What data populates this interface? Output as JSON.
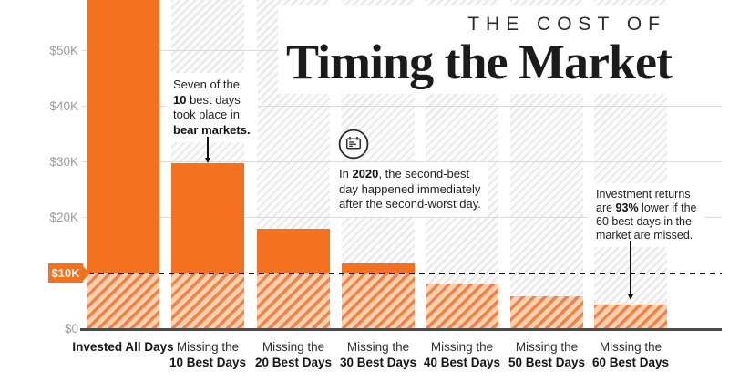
{
  "header": {
    "kicker": "THE COST OF",
    "title": "Timing the Market"
  },
  "chart_data": {
    "type": "bar",
    "title": "The Cost of Timing the Market",
    "categories": [
      "Invested All Days",
      "Missing the 10 Best Days",
      "Missing the 20 Best Days",
      "Missing the 30 Best Days",
      "Missing the 40 Best Days",
      "Missing the 50 Best Days",
      "Missing the 60 Best Days"
    ],
    "category_label_lines": [
      [
        "Invested All Days"
      ],
      [
        "Missing the",
        "10 Best Days"
      ],
      [
        "Missing the",
        "20 Best Days"
      ],
      [
        "Missing the",
        "30 Best Days"
      ],
      [
        "Missing the",
        "40 Best Days"
      ],
      [
        "Missing the",
        "50 Best Days"
      ],
      [
        "Missing the",
        "60 Best Days"
      ]
    ],
    "values": [
      65000,
      29700,
      17800,
      11700,
      8000,
      5700,
      4200
    ],
    "values_note": "First bar is clipped by the top edge of the image; its value is estimated.",
    "ylim": [
      0,
      58000
    ],
    "grid": true,
    "legend": false,
    "y_ticks": [
      {
        "label": "$0",
        "value": 0,
        "highlight": false
      },
      {
        "label": "$10K",
        "value": 10000,
        "highlight": true
      },
      {
        "label": "$20K",
        "value": 20000,
        "highlight": false
      },
      {
        "label": "$30K",
        "value": 30000,
        "highlight": false
      },
      {
        "label": "$40K",
        "value": 40000,
        "highlight": false
      },
      {
        "label": "$50K",
        "value": 50000,
        "highlight": false
      }
    ],
    "reference_line": {
      "value": 10000,
      "label": "$10K",
      "style": "dashed"
    }
  },
  "annotations": {
    "bear_markets": {
      "l1": "Seven of the",
      "l2_bold": "10",
      "l2_rest": " best days",
      "l3": "took place in",
      "l4_bold": "bear markets."
    },
    "year2020": {
      "l1_pre": "In ",
      "l1_bold": "2020",
      "l1_rest": ", the second-best",
      "l2": "day happened immediately",
      "l3": "after the second-worst day."
    },
    "returns": {
      "l1": "Investment returns",
      "l2_pre": "are ",
      "l2_bold": "93%",
      "l2_rest": " lower if the",
      "l3": "60 best days in the",
      "l4": "market are missed."
    }
  },
  "colors": {
    "bar_solid": "#F4711F",
    "bar_hatch_stripe": "#F0824A",
    "bar_hatch_bg": "#FBD2AF",
    "column_hatch_stripe": "#E5E5E5",
    "column_hatch_bg": "#FBFBFB",
    "grid": "#DBDBDB",
    "axis_label": "#9B9B9B",
    "baseline": "#4A4A4A",
    "badge_bg": "#F4711F",
    "badge_text": "#FFFFFF"
  }
}
